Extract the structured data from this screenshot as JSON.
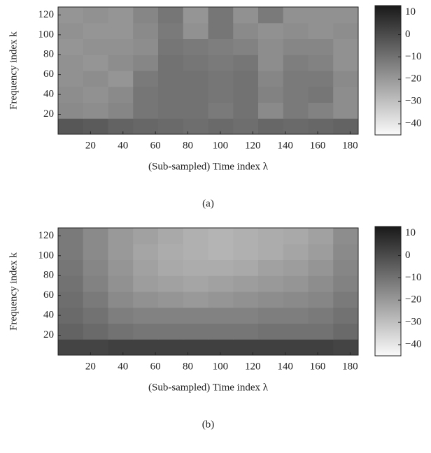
{
  "chart_data": [
    {
      "type": "heatmap",
      "caption": "(a)",
      "xlabel": "(Sub-sampled) Time index λ",
      "ylabel": "Frequency index k",
      "xlim": [
        0,
        185
      ],
      "ylim": [
        0,
        128
      ],
      "xticks": [
        20,
        40,
        60,
        80,
        100,
        120,
        140,
        160,
        180
      ],
      "yticks": [
        20,
        40,
        60,
        80,
        100,
        120
      ],
      "zlim": [
        -45,
        13
      ],
      "zticks": [
        10,
        0,
        {
          "value": -10,
          "label": "−10"
        },
        {
          "value": -20,
          "label": "−20"
        },
        {
          "value": -30,
          "label": "−30"
        },
        {
          "value": -40,
          "label": "−40"
        }
      ],
      "z": [
        [
          -3,
          -4,
          -6,
          -7,
          -8,
          -9,
          -8,
          -9,
          -7,
          -8,
          -7,
          -6
        ],
        [
          -16,
          -17,
          -15,
          -11,
          -10,
          -10,
          -12,
          -10,
          -16,
          -12,
          -14,
          -17
        ],
        [
          -17,
          -18,
          -16,
          -11,
          -10,
          -10,
          -11,
          -10,
          -14,
          -12,
          -11,
          -17
        ],
        [
          -18,
          -17,
          -19,
          -12,
          -10,
          -10,
          -11,
          -10,
          -15,
          -12,
          -12,
          -16
        ],
        [
          -18,
          -19,
          -17,
          -15,
          -10,
          -11,
          -12,
          -11,
          -17,
          -13,
          -14,
          -18
        ],
        [
          -19,
          -18,
          -18,
          -17,
          -11,
          -12,
          -13,
          -14,
          -17,
          -15,
          -15,
          -18
        ],
        [
          -18,
          -19,
          -19,
          -16,
          -12,
          -18,
          -11,
          -16,
          -18,
          -17,
          -18,
          -17
        ],
        [
          -19,
          -18,
          -19,
          -15,
          -11,
          -19,
          -11,
          -18,
          -12,
          -18,
          -18,
          -18
        ]
      ]
    },
    {
      "type": "heatmap",
      "caption": "(b)",
      "xlabel": "(Sub-sampled) Time index λ",
      "ylabel": "Frequency index k",
      "xlim": [
        0,
        185
      ],
      "ylim": [
        0,
        128
      ],
      "xticks": [
        20,
        40,
        60,
        80,
        100,
        120,
        140,
        160,
        180
      ],
      "yticks": [
        20,
        40,
        60,
        80,
        100,
        120
      ],
      "zlim": [
        -45,
        13
      ],
      "zticks": [
        10,
        0,
        {
          "value": -10,
          "label": "−10"
        },
        {
          "value": -20,
          "label": "−20"
        },
        {
          "value": -30,
          "label": "−30"
        },
        {
          "value": -40,
          "label": "−40"
        }
      ],
      "z": [
        [
          2,
          2,
          3,
          3,
          3,
          3,
          3,
          3,
          3,
          3,
          3,
          2
        ],
        [
          -6,
          -8,
          -10,
          -11,
          -11,
          -11,
          -11,
          -11,
          -10,
          -10,
          -10,
          -8
        ],
        [
          -8,
          -10,
          -13,
          -14,
          -14,
          -14,
          -14,
          -14,
          -13,
          -13,
          -12,
          -10
        ],
        [
          -9,
          -12,
          -16,
          -18,
          -19,
          -20,
          -19,
          -18,
          -17,
          -16,
          -15,
          -12
        ],
        [
          -10,
          -14,
          -18,
          -21,
          -22,
          -23,
          -22,
          -21,
          -20,
          -19,
          -17,
          -14
        ],
        [
          -11,
          -15,
          -19,
          -22,
          -24,
          -25,
          -25,
          -24,
          -22,
          -21,
          -19,
          -15
        ],
        [
          -12,
          -16,
          -20,
          -23,
          -25,
          -26,
          -27,
          -26,
          -25,
          -23,
          -21,
          -16
        ],
        [
          -12,
          -16,
          -20,
          -22,
          -24,
          -26,
          -27,
          -26,
          -25,
          -24,
          -22,
          -17
        ]
      ]
    }
  ]
}
